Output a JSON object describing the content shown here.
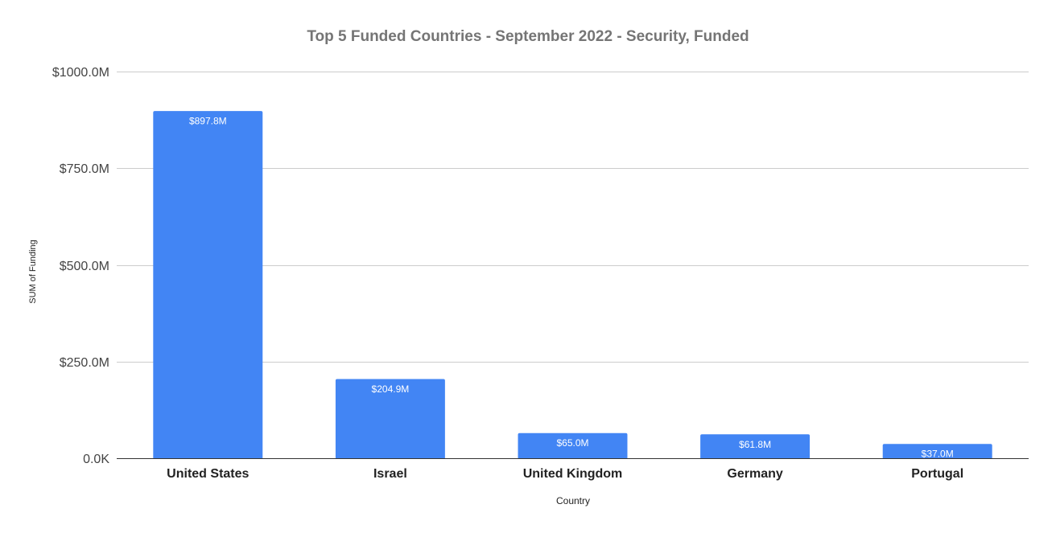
{
  "chart_data": {
    "type": "bar",
    "title": "Top 5 Funded Countries - September 2022 - Security, Funded",
    "xlabel": "Country",
    "ylabel": "SUM of Funding",
    "categories": [
      "United States",
      "Israel",
      "United Kingdom",
      "Germany",
      "Portugal"
    ],
    "values": [
      897.8,
      204.9,
      65.0,
      61.8,
      37.0
    ],
    "value_unit": "$M",
    "data_labels": [
      "$897.8M",
      "$204.9M",
      "$65.0M",
      "$61.8M",
      "$37.0M"
    ],
    "ylim": [
      0,
      1000
    ],
    "y_ticks": [
      0,
      250,
      500,
      750,
      1000
    ],
    "y_tick_labels": [
      "0.0K",
      "$250.0M",
      "$500.0M",
      "$750.0M",
      "$1000.0M"
    ],
    "grid": true,
    "legend": "none",
    "bar_color": "#4285f4",
    "data_label_color": "#ffffff",
    "title_color": "#757575",
    "grid_color": "#cccccc",
    "axis_color": "#333333"
  }
}
